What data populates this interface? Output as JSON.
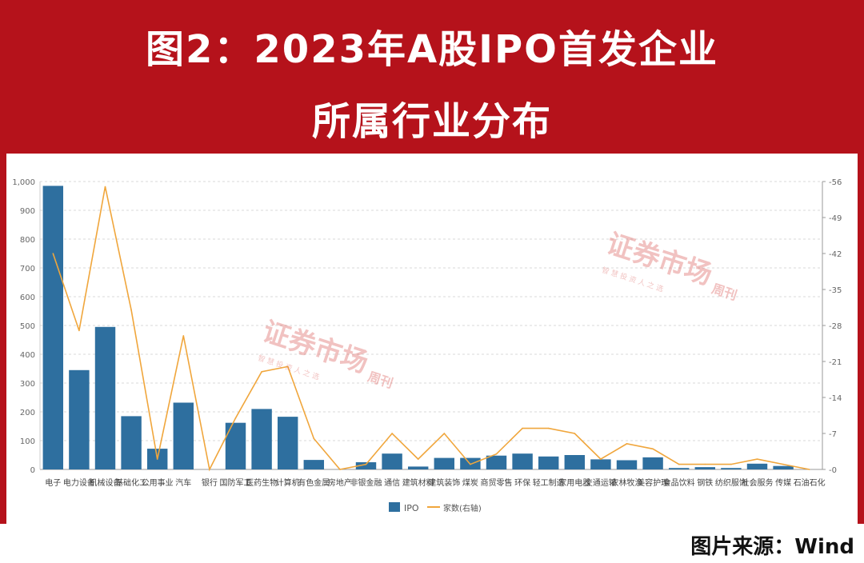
{
  "title_line1": "图2：2023年A股IPO首发企业",
  "title_line2": "所属行业分布",
  "source": "图片来源：Wind",
  "watermark": {
    "title": "证券市场",
    "side": "周刊",
    "sub": "智 慧 投 资 人 之 选",
    "en": "CAPITAL WEEK"
  },
  "colors": {
    "bar": "#2e6f9f",
    "line": "#f0a63c",
    "background": "#b5121b"
  },
  "chart_data": {
    "type": "bar+line",
    "categories": [
      "电子",
      "电力设备",
      "机械设备",
      "基础化工",
      "公用事业",
      "汽车",
      "银行",
      "国防军工",
      "医药生物",
      "计算机",
      "有色金属",
      "房地产",
      "非银金融",
      "通信",
      "建筑材料",
      "建筑装饰",
      "煤炭",
      "商贸零售",
      "环保",
      "轻工制造",
      "家用电器",
      "交通运输",
      "农林牧渔",
      "美容护理",
      "食品饮料",
      "钢铁",
      "纺织服饰",
      "社会服务",
      "传媒",
      "石油石化"
    ],
    "x_tick_labels": [
      "电子",
      "电力设备",
      "机械设备",
      "基础化工",
      "公用事业",
      "汽车",
      "银行",
      "国防军工",
      "医药生物",
      "计算机",
      "有色金属",
      "房地产",
      "非银金融",
      "通信",
      "建筑材料",
      "建筑装饰",
      "煤炭",
      "商贸零售",
      "环保",
      "轻工制造",
      "家用电器",
      "交通运输",
      "农林牧渔",
      "美容护理",
      "食品饮料",
      "钢铁",
      "纺织服饰",
      "社会服务",
      "传媒",
      "石油石化"
    ],
    "series": [
      {
        "name": "IPO",
        "type": "bar",
        "axis": "left",
        "values": [
          985,
          345,
          495,
          185,
          72,
          232,
          0,
          162,
          210,
          183,
          33,
          0,
          25,
          55,
          10,
          40,
          40,
          48,
          55,
          45,
          50,
          35,
          32,
          42,
          5,
          8,
          5,
          20,
          12,
          0
        ]
      },
      {
        "name": "家数(右轴)",
        "type": "line",
        "axis": "right",
        "values": [
          42,
          27,
          55,
          31,
          2,
          26,
          0,
          10,
          19,
          20,
          6,
          0,
          1,
          7,
          2,
          7,
          1,
          3,
          8,
          8,
          7,
          2,
          5,
          4,
          1,
          1,
          1,
          2,
          1,
          0
        ]
      }
    ],
    "y_left": {
      "lim": [
        0,
        1000
      ],
      "ticks": [
        "0",
        "100",
        "200",
        "300",
        "400",
        "500",
        "600",
        "700",
        "800",
        "900",
        "1,000"
      ]
    },
    "y_right": {
      "lim": [
        0,
        56
      ],
      "ticks": [
        "0",
        "7",
        "14",
        "21",
        "28",
        "35",
        "42",
        "49",
        "56"
      ]
    },
    "grid": true,
    "legend_position": "bottom"
  }
}
